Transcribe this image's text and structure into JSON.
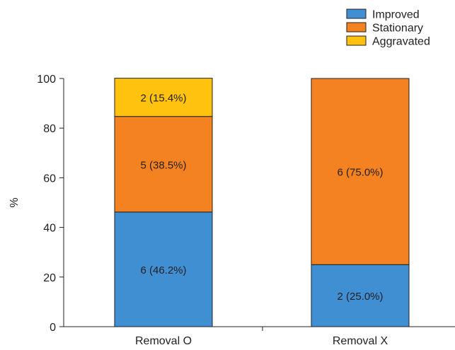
{
  "chart_data": {
    "type": "bar",
    "stacked": true,
    "categories": [
      "Removal O",
      "Removal X"
    ],
    "series": [
      {
        "name": "Improved",
        "color": "#3f8fd2",
        "values": [
          46.2,
          25.0
        ],
        "labels": [
          "6 (46.2%)",
          "2 (25.0%)"
        ]
      },
      {
        "name": "Stationary",
        "color": "#f48220",
        "values": [
          38.5,
          75.0
        ],
        "labels": [
          "5 (38.5%)",
          "6 (75.0%)"
        ]
      },
      {
        "name": "Aggravated",
        "color": "#ffc20e",
        "values": [
          15.4,
          0
        ],
        "labels": [
          "2 (15.4%)",
          ""
        ]
      }
    ],
    "title": "",
    "xlabel": "",
    "ylabel": "%",
    "ylim": [
      0,
      100
    ],
    "yticks": [
      "0",
      "20",
      "40",
      "60",
      "80",
      "100"
    ],
    "grid": false,
    "legend_position": "top-right"
  }
}
